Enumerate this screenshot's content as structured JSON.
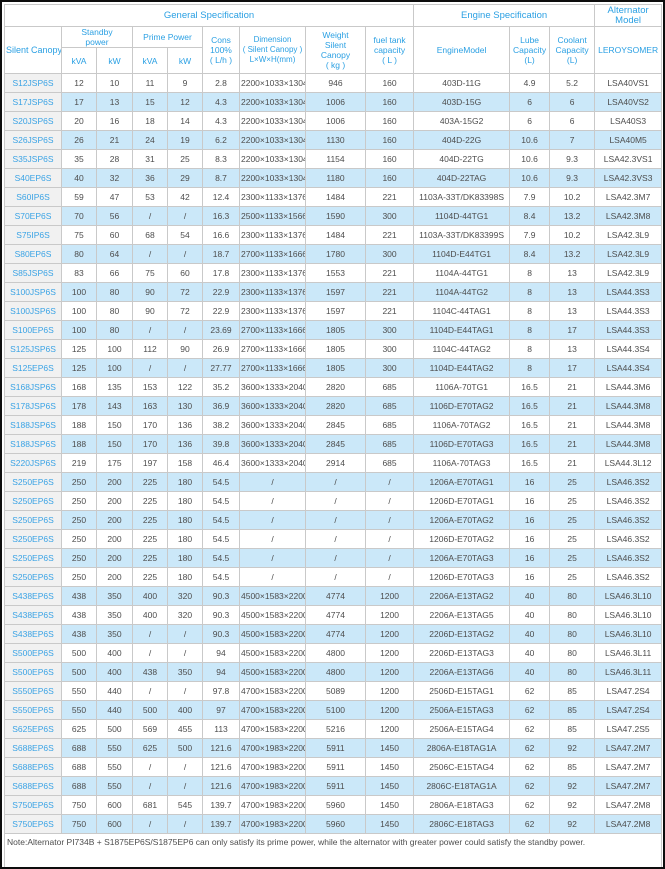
{
  "colors": {
    "header_text": "#2ba0e3",
    "model_text": "#3aa3e5",
    "row_alt_bg": "#cbe8f9",
    "model_col_bg": "#f1f1f1",
    "border": "#c9c9c9",
    "data_text": "#4d4d4d"
  },
  "table": {
    "header": {
      "general_specification": "General Specification",
      "engine_specification": "Engine Specification",
      "alternator_model": "Alternator Model",
      "silent_canopy": "Silent Canopy",
      "standby_power": "Standby\npower",
      "prime_power": "Prime Power",
      "kva": "kVA",
      "kw": "kW",
      "cons": "Cons\n100%\n( L/h )",
      "dimension": "Dimension\n( Silent Canopy )\nL×W×H(mm)",
      "weight": "Weight\nSilent\nCanopy\n( kg )",
      "fuel": "fuel tank\ncapacity\n( L )",
      "engine_model": "EngineModel",
      "lube": "Lube\nCapacity\n(L)",
      "coolant": "Coolant\nCapacity\n(L)",
      "leroysomer": "LEROYSOMER"
    },
    "rows": [
      [
        "S12JSP6S",
        "12",
        "10",
        "11",
        "9",
        "2.8",
        "2200×1033×1304",
        "946",
        "160",
        "403D-11G",
        "4.9",
        "5.2",
        "LSA40VS1"
      ],
      [
        "S17JSP6S",
        "17",
        "13",
        "15",
        "12",
        "4.3",
        "2200×1033×1304",
        "1006",
        "160",
        "403D-15G",
        "6",
        "6",
        "LSA40VS2"
      ],
      [
        "S20JSP6S",
        "20",
        "16",
        "18",
        "14",
        "4.3",
        "2200×1033×1304",
        "1006",
        "160",
        "403A-15G2",
        "6",
        "6",
        "LSA40S3"
      ],
      [
        "S26JSP6S",
        "26",
        "21",
        "24",
        "19",
        "6.2",
        "2200×1033×1304",
        "1130",
        "160",
        "404D-22G",
        "10.6",
        "7",
        "LSA40M5"
      ],
      [
        "S35JSP6S",
        "35",
        "28",
        "31",
        "25",
        "8.3",
        "2200×1033×1304",
        "1154",
        "160",
        "404D-22TG",
        "10.6",
        "9.3",
        "LSA42.3VS1"
      ],
      [
        "S40EP6S",
        "40",
        "32",
        "36",
        "29",
        "8.7",
        "2200×1033×1304",
        "1180",
        "160",
        "404D-22TAG",
        "10.6",
        "9.3",
        "LSA42.3VS3"
      ],
      [
        "S60IP6S",
        "59",
        "47",
        "53",
        "42",
        "12.4",
        "2300×1133×1376",
        "1484",
        "221",
        "1103A-33T/DK83398S",
        "7.9",
        "10.2",
        "LSA42.3M7"
      ],
      [
        "S70EP6S",
        "70",
        "56",
        "/",
        "/",
        "16.3",
        "2500×1133×1566",
        "1590",
        "300",
        "1104D-44TG1",
        "8.4",
        "13.2",
        "LSA42.3M8"
      ],
      [
        "S75IP6S",
        "75",
        "60",
        "68",
        "54",
        "16.6",
        "2300×1133×1376",
        "1484",
        "221",
        "1103A-33T/DK83399S",
        "7.9",
        "10.2",
        "LSA42.3L9"
      ],
      [
        "S80EP6S",
        "80",
        "64",
        "/",
        "/",
        "18.7",
        "2700×1133×1666",
        "1780",
        "300",
        "1104D-E44TG1",
        "8.4",
        "13.2",
        "LSA42.3L9"
      ],
      [
        "S85JSP6S",
        "83",
        "66",
        "75",
        "60",
        "17.8",
        "2300×1133×1376",
        "1553",
        "221",
        "1104A-44TG1",
        "8",
        "13",
        "LSA42.3L9"
      ],
      [
        "S100JSP6S",
        "100",
        "80",
        "90",
        "72",
        "22.9",
        "2300×1133×1376",
        "1597",
        "221",
        "1104A-44TG2",
        "8",
        "13",
        "LSA44.3S3"
      ],
      [
        "S100JSP6S",
        "100",
        "80",
        "90",
        "72",
        "22.9",
        "2300×1133×1376",
        "1597",
        "221",
        "1104C-44TAG1",
        "8",
        "13",
        "LSA44.3S3"
      ],
      [
        "S100EP6S",
        "100",
        "80",
        "/",
        "/",
        "23.69",
        "2700×1133×1666",
        "1805",
        "300",
        "1104D-E44TAG1",
        "8",
        "17",
        "LSA44.3S3"
      ],
      [
        "S125JSP6S",
        "125",
        "100",
        "112",
        "90",
        "26.9",
        "2700×1133×1666",
        "1805",
        "300",
        "1104C-44TAG2",
        "8",
        "13",
        "LSA44.3S4"
      ],
      [
        "S125EP6S",
        "125",
        "100",
        "/",
        "/",
        "27.77",
        "2700×1133×1666",
        "1805",
        "300",
        "1104D-E44TAG2",
        "8",
        "17",
        "LSA44.3S4"
      ],
      [
        "S168JSP6S",
        "168",
        "135",
        "153",
        "122",
        "35.2",
        "3600×1333×2040",
        "2820",
        "685",
        "1106A-70TG1",
        "16.5",
        "21",
        "LSA44.3M6"
      ],
      [
        "S178JSP6S",
        "178",
        "143",
        "163",
        "130",
        "36.9",
        "3600×1333×2040",
        "2820",
        "685",
        "1106D-E70TAG2",
        "16.5",
        "21",
        "LSA44.3M8"
      ],
      [
        "S188JSP6S",
        "188",
        "150",
        "170",
        "136",
        "38.2",
        "3600×1333×2040",
        "2845",
        "685",
        "1106A-70TAG2",
        "16.5",
        "21",
        "LSA44.3M8"
      ],
      [
        "S188JSP6S",
        "188",
        "150",
        "170",
        "136",
        "39.8",
        "3600×1333×2040",
        "2845",
        "685",
        "1106D-E70TAG3",
        "16.5",
        "21",
        "LSA44.3M8"
      ],
      [
        "S220JSP6S",
        "219",
        "175",
        "197",
        "158",
        "46.4",
        "3600×1333×2040",
        "2914",
        "685",
        "1106A-70TAG3",
        "16.5",
        "21",
        "LSA44.3L12"
      ],
      [
        "S250EP6S",
        "250",
        "200",
        "225",
        "180",
        "54.5",
        "/",
        "/",
        "/",
        "1206A-E70TAG1",
        "16",
        "25",
        "LSA46.3S2"
      ],
      [
        "S250EP6S",
        "250",
        "200",
        "225",
        "180",
        "54.5",
        "/",
        "/",
        "/",
        "1206D-E70TAG1",
        "16",
        "25",
        "LSA46.3S2"
      ],
      [
        "S250EP6S",
        "250",
        "200",
        "225",
        "180",
        "54.5",
        "/",
        "/",
        "/",
        "1206A-E70TAG2",
        "16",
        "25",
        "LSA46.3S2"
      ],
      [
        "S250EP6S",
        "250",
        "200",
        "225",
        "180",
        "54.5",
        "/",
        "/",
        "/",
        "1206D-E70TAG2",
        "16",
        "25",
        "LSA46.3S2"
      ],
      [
        "S250EP6S",
        "250",
        "200",
        "225",
        "180",
        "54.5",
        "/",
        "/",
        "/",
        "1206A-E70TAG3",
        "16",
        "25",
        "LSA46.3S2"
      ],
      [
        "S250EP6S",
        "250",
        "200",
        "225",
        "180",
        "54.5",
        "/",
        "/",
        "/",
        "1206D-E70TAG3",
        "16",
        "25",
        "LSA46.3S2"
      ],
      [
        "S438EP6S",
        "438",
        "350",
        "400",
        "320",
        "90.3",
        "4500×1583×2200",
        "4774",
        "1200",
        "2206A-E13TAG2",
        "40",
        "80",
        "LSA46.3L10"
      ],
      [
        "S438EP6S",
        "438",
        "350",
        "400",
        "320",
        "90.3",
        "4500×1583×2200",
        "4774",
        "1200",
        "2206A-E13TAG5",
        "40",
        "80",
        "LSA46.3L10"
      ],
      [
        "S438EP6S",
        "438",
        "350",
        "/",
        "/",
        "90.3",
        "4500×1583×2200",
        "4774",
        "1200",
        "2206D-E13TAG2",
        "40",
        "80",
        "LSA46.3L10"
      ],
      [
        "S500EP6S",
        "500",
        "400",
        "/",
        "/",
        "94",
        "4500×1583×2200",
        "4800",
        "1200",
        "2206D-E13TAG3",
        "40",
        "80",
        "LSA46.3L11"
      ],
      [
        "S500EP6S",
        "500",
        "400",
        "438",
        "350",
        "94",
        "4500×1583×2200",
        "4800",
        "1200",
        "2206A-E13TAG6",
        "40",
        "80",
        "LSA46.3L11"
      ],
      [
        "S550EP6S",
        "550",
        "440",
        "/",
        "/",
        "97.8",
        "4700×1583×2200",
        "5089",
        "1200",
        "2506D-E15TAG1",
        "62",
        "85",
        "LSA47.2S4"
      ],
      [
        "S550EP6S",
        "550",
        "440",
        "500",
        "400",
        "97",
        "4700×1583×2200",
        "5100",
        "1200",
        "2506A-E15TAG3",
        "62",
        "85",
        "LSA47.2S4"
      ],
      [
        "S625EP6S",
        "625",
        "500",
        "569",
        "455",
        "113",
        "4700×1583×2200",
        "5216",
        "1200",
        "2506A-E15TAG4",
        "62",
        "85",
        "LSA47.2S5"
      ],
      [
        "S688EP6S",
        "688",
        "550",
        "625",
        "500",
        "121.6",
        "4700×1983×2200",
        "5911",
        "1450",
        "2806A-E18TAG1A",
        "62",
        "92",
        "LSA47.2M7"
      ],
      [
        "S688EP6S",
        "688",
        "550",
        "/",
        "/",
        "121.6",
        "4700×1983×2200",
        "5911",
        "1450",
        "2506C-E15TAG4",
        "62",
        "85",
        "LSA47.2M7"
      ],
      [
        "S688EP6S",
        "688",
        "550",
        "/",
        "/",
        "121.6",
        "4700×1983×2200",
        "5911",
        "1450",
        "2806C-E18TAG1A",
        "62",
        "92",
        "LSA47.2M7"
      ],
      [
        "S750EP6S",
        "750",
        "600",
        "681",
        "545",
        "139.7",
        "4700×1983×2200",
        "5960",
        "1450",
        "2806A-E18TAG3",
        "62",
        "92",
        "LSA47.2M8"
      ],
      [
        "S750EP6S",
        "750",
        "600",
        "/",
        "/",
        "139.7",
        "4700×1983×2200",
        "5960",
        "1450",
        "2806C-E18TAG3",
        "62",
        "92",
        "LSA47.2M8"
      ]
    ]
  },
  "note": "Note:Alternator PI734B + S1875EP6S/S1875EP6 can only satisfy its prime power, while the alternator with greater power could satisfy the standby power."
}
